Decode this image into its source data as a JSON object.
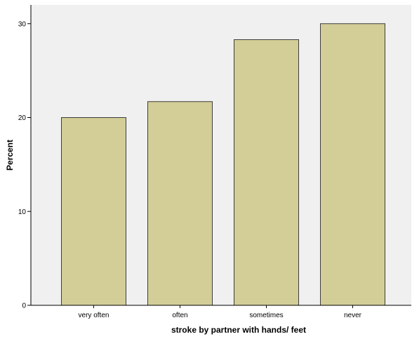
{
  "colors": {
    "plot_background": "#f0f0f0",
    "bar_fill": "#d3ce97",
    "bar_stroke": "#3c3c3c",
    "axis": "#000000"
  },
  "chart_data": {
    "type": "bar",
    "title": "",
    "xlabel": "stroke by partner with hands/ feet",
    "ylabel": "Percent",
    "categories": [
      "very often",
      "often",
      "sometimes",
      "never"
    ],
    "values": [
      20.0,
      21.7,
      28.3,
      30.0
    ],
    "ylim": [
      0,
      32
    ],
    "yticks": [
      0,
      10,
      20,
      30
    ],
    "grid": false,
    "legend": "none"
  }
}
